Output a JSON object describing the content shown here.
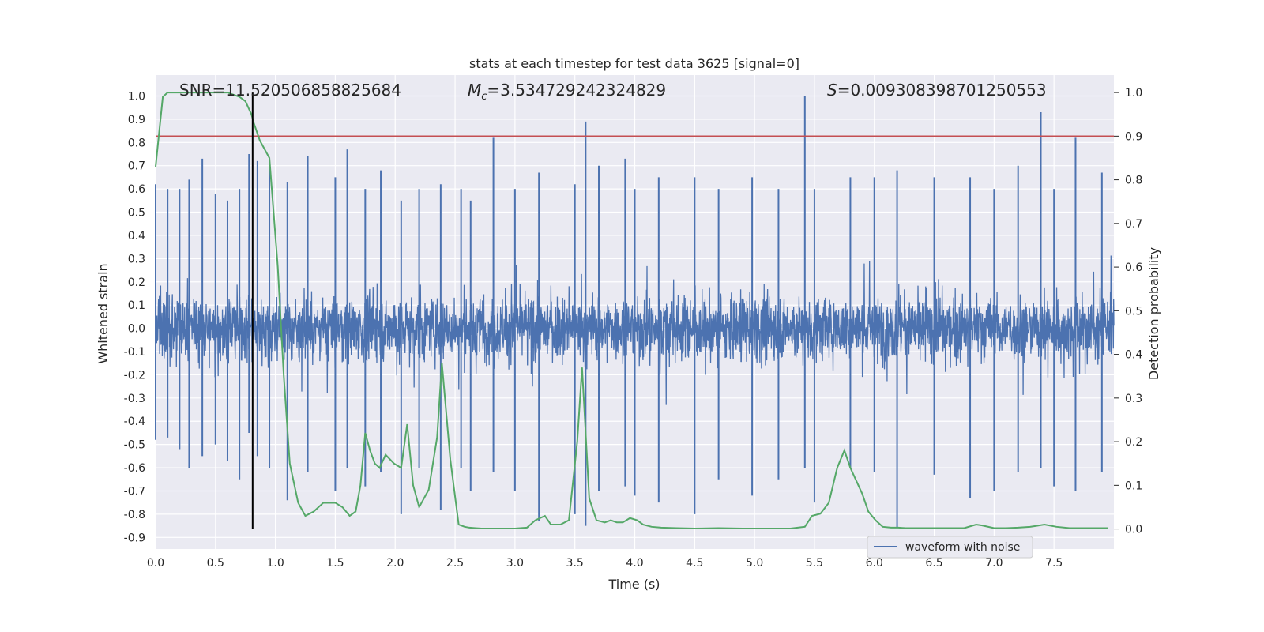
{
  "chart_data": {
    "type": "line",
    "title": "stats at each timestep for test data 3625 [signal=0]",
    "xlabel": "Time (s)",
    "ylabel": "Whitened strain",
    "y2label": "Detection probability",
    "xlim": [
      0.0,
      8.0
    ],
    "ylim": [
      -0.95,
      1.09
    ],
    "y2lim": [
      -0.046,
      1.04
    ],
    "grid": true,
    "legend_position": "lower-right",
    "x_ticks": [
      "0.0",
      "0.5",
      "1.0",
      "1.5",
      "2.0",
      "2.5",
      "3.0",
      "3.5",
      "4.0",
      "4.5",
      "5.0",
      "5.5",
      "6.0",
      "6.5",
      "7.0",
      "7.5"
    ],
    "y_ticks": [
      "1.0",
      "0.9",
      "0.8",
      "0.7",
      "0.6",
      "0.5",
      "0.4",
      "0.3",
      "0.2",
      "0.1",
      "0.0",
      "-0.1",
      "-0.2",
      "-0.3",
      "-0.4",
      "-0.5",
      "-0.6",
      "-0.7",
      "-0.8",
      "-0.9"
    ],
    "y2_ticks": [
      "1.0",
      "0.9",
      "0.8",
      "0.7",
      "0.6",
      "0.5",
      "0.4",
      "0.3",
      "0.2",
      "0.1",
      "0.0"
    ],
    "annotations": {
      "snr": "SNR=11.520506858825684",
      "mc_symbol": "M",
      "mc_sub": "c",
      "mc_value": "=3.534729242324829",
      "s_symbol": "S",
      "s_value": "=0.009308398701250553"
    },
    "threshold": {
      "value": 0.9,
      "axis": "y2",
      "color": "#c44e52"
    },
    "vline": {
      "x": 0.81,
      "y2_range": [
        0.0,
        1.0
      ],
      "color": "#000000"
    },
    "series": [
      {
        "name": "waveform with noise",
        "axis": "y",
        "color": "#4c72b0",
        "sample_rate_note": "dense noisy strain; envelope peaks listed",
        "peaks": [
          [
            0.0,
            0.62,
            -0.48
          ],
          [
            0.1,
            0.6,
            -0.47
          ],
          [
            0.2,
            0.6,
            -0.52
          ],
          [
            0.28,
            0.64,
            -0.6
          ],
          [
            0.39,
            0.73,
            -0.55
          ],
          [
            0.5,
            0.58,
            -0.5
          ],
          [
            0.6,
            0.55,
            -0.57
          ],
          [
            0.7,
            0.6,
            -0.65
          ],
          [
            0.78,
            0.75,
            -0.45
          ],
          [
            0.85,
            0.72,
            -0.55
          ],
          [
            0.95,
            0.7,
            -0.6
          ],
          [
            1.1,
            0.63,
            -0.74
          ],
          [
            1.27,
            0.74,
            -0.62
          ],
          [
            1.5,
            0.65,
            -0.7
          ],
          [
            1.6,
            0.77,
            -0.6
          ],
          [
            1.75,
            0.6,
            -0.68
          ],
          [
            1.88,
            0.68,
            -0.62
          ],
          [
            2.05,
            0.55,
            -0.8
          ],
          [
            2.2,
            0.6,
            -0.6
          ],
          [
            2.38,
            0.62,
            -0.78
          ],
          [
            2.55,
            0.6,
            -0.6
          ],
          [
            2.63,
            0.55,
            -0.7
          ],
          [
            2.82,
            0.82,
            -0.62
          ],
          [
            3.0,
            0.6,
            -0.7
          ],
          [
            3.2,
            0.67,
            -0.83
          ],
          [
            3.5,
            0.62,
            -0.8
          ],
          [
            3.59,
            0.89,
            -0.85
          ],
          [
            3.7,
            0.7,
            -0.7
          ],
          [
            3.92,
            0.73,
            -0.68
          ],
          [
            4.0,
            0.6,
            -0.72
          ],
          [
            4.2,
            0.65,
            -0.75
          ],
          [
            4.5,
            0.65,
            -0.8
          ],
          [
            4.7,
            0.6,
            -0.65
          ],
          [
            4.98,
            0.65,
            -0.72
          ],
          [
            5.2,
            0.6,
            -0.65
          ],
          [
            5.42,
            1.0,
            -0.6
          ],
          [
            5.5,
            0.6,
            -0.75
          ],
          [
            5.8,
            0.65,
            -0.6
          ],
          [
            6.0,
            0.65,
            -0.62
          ],
          [
            6.19,
            0.68,
            -0.86
          ],
          [
            6.5,
            0.65,
            -0.63
          ],
          [
            6.8,
            0.65,
            -0.73
          ],
          [
            7.0,
            0.6,
            -0.7
          ],
          [
            7.2,
            0.7,
            -0.62
          ],
          [
            7.39,
            0.93,
            -0.6
          ],
          [
            7.5,
            0.6,
            -0.68
          ],
          [
            7.68,
            0.82,
            -0.7
          ],
          [
            7.9,
            0.67,
            -0.62
          ]
        ]
      },
      {
        "name": "",
        "axis": "y2",
        "color": "#55a868",
        "x": [
          0.0,
          0.06,
          0.1,
          0.2,
          0.3,
          0.4,
          0.5,
          0.6,
          0.7,
          0.75,
          0.8,
          0.82,
          0.87,
          0.95,
          1.02,
          1.07,
          1.12,
          1.19,
          1.25,
          1.32,
          1.4,
          1.44,
          1.5,
          1.56,
          1.62,
          1.67,
          1.71,
          1.75,
          1.79,
          1.83,
          1.87,
          1.92,
          1.99,
          2.05,
          2.1,
          2.15,
          2.2,
          2.28,
          2.35,
          2.39,
          2.46,
          2.53,
          2.58,
          2.62,
          2.67,
          2.72,
          2.8,
          2.9,
          3.0,
          3.1,
          3.17,
          3.25,
          3.3,
          3.38,
          3.45,
          3.52,
          3.56,
          3.62,
          3.68,
          3.75,
          3.8,
          3.85,
          3.9,
          3.96,
          4.02,
          4.07,
          4.14,
          4.22,
          4.35,
          4.5,
          4.7,
          4.9,
          5.1,
          5.3,
          5.42,
          5.48,
          5.55,
          5.62,
          5.69,
          5.75,
          5.8,
          5.85,
          5.9,
          5.95,
          6.01,
          6.07,
          6.14,
          6.2,
          6.26,
          6.35,
          6.45,
          6.6,
          6.75,
          6.85,
          6.9,
          7.0,
          7.1,
          7.2,
          7.3,
          7.35,
          7.42,
          7.52,
          7.63,
          7.78,
          7.95
        ],
        "values": [
          0.83,
          0.99,
          1.0,
          1.0,
          1.0,
          1.0,
          1.0,
          1.0,
          0.99,
          0.98,
          0.95,
          0.93,
          0.89,
          0.85,
          0.6,
          0.35,
          0.15,
          0.06,
          0.03,
          0.04,
          0.06,
          0.06,
          0.06,
          0.05,
          0.03,
          0.04,
          0.1,
          0.22,
          0.18,
          0.15,
          0.14,
          0.17,
          0.15,
          0.14,
          0.24,
          0.1,
          0.05,
          0.09,
          0.21,
          0.38,
          0.16,
          0.01,
          0.005,
          0.003,
          0.002,
          0.001,
          0.001,
          0.001,
          0.001,
          0.003,
          0.02,
          0.03,
          0.01,
          0.01,
          0.02,
          0.2,
          0.37,
          0.07,
          0.02,
          0.015,
          0.02,
          0.015,
          0.015,
          0.025,
          0.02,
          0.01,
          0.005,
          0.003,
          0.002,
          0.001,
          0.002,
          0.001,
          0.001,
          0.001,
          0.005,
          0.03,
          0.035,
          0.06,
          0.14,
          0.18,
          0.14,
          0.11,
          0.08,
          0.04,
          0.02,
          0.005,
          0.003,
          0.003,
          0.002,
          0.002,
          0.002,
          0.002,
          0.002,
          0.01,
          0.008,
          0.002,
          0.002,
          0.003,
          0.005,
          0.007,
          0.01,
          0.005,
          0.002,
          0.002,
          0.002
        ]
      }
    ]
  }
}
